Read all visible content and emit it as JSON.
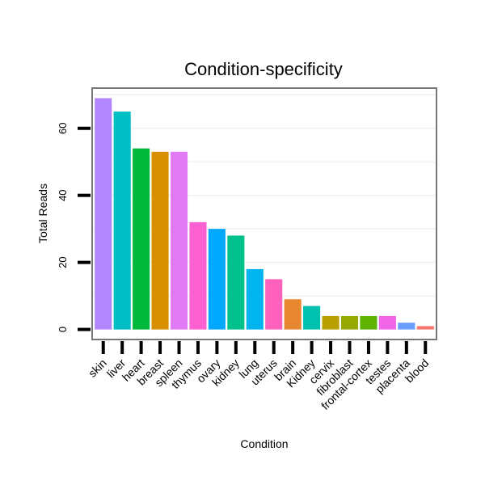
{
  "chart_data": {
    "type": "bar",
    "title": "Condition-specificity",
    "xlabel": "Condition",
    "ylabel": "Total Reads",
    "ylim": [
      -3,
      72
    ],
    "yticks": [
      0,
      20,
      40,
      60
    ],
    "grid": true,
    "legend": "none",
    "categories": [
      "skin",
      "liver",
      "heart",
      "breast",
      "spleen",
      "thymus",
      "ovary",
      "kidney",
      "lung",
      "uterus",
      "brain",
      "Kidney",
      "cervix",
      "fibroblast",
      "frontal-cortex",
      "testes",
      "placenta",
      "blood"
    ],
    "values": [
      69,
      65,
      54,
      53,
      53,
      32,
      30,
      28,
      18,
      15,
      9,
      7,
      4,
      4,
      4,
      4,
      2,
      1
    ],
    "colors": [
      "#B186FF",
      "#00BFC4",
      "#00B83B",
      "#D89000",
      "#E27AF5",
      "#FD61D1",
      "#00A9FF",
      "#00C18C",
      "#00B4EF",
      "#FF62BC",
      "#E98731",
      "#00C0B0",
      "#B9A000",
      "#95A900",
      "#5DB300",
      "#F265E8",
      "#6B9CFF",
      "#F8766D"
    ]
  }
}
